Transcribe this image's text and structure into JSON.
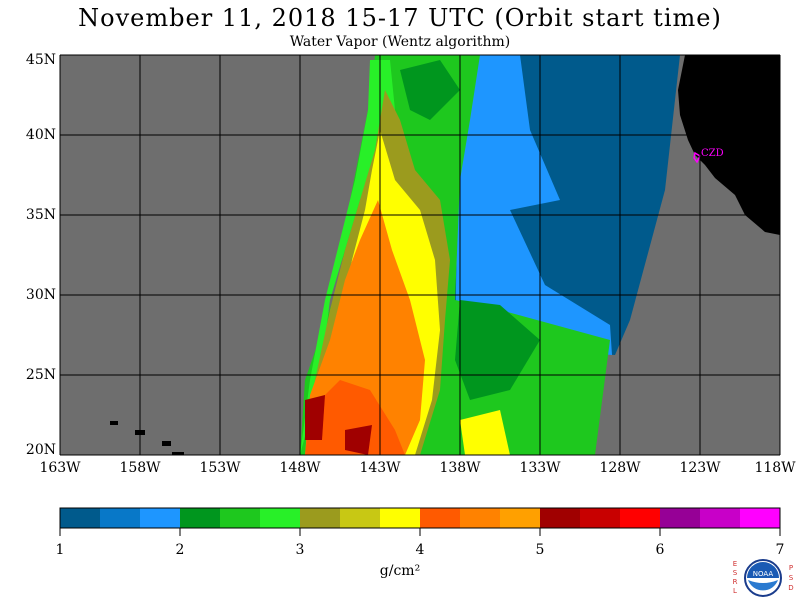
{
  "title": "November 11, 2018  15-17 UTC  (Orbit start time)",
  "subtitle": "Water Vapor (Wentz algorithm)",
  "lat_labels": [
    "45N",
    "40N",
    "35N",
    "30N",
    "25N",
    "20N"
  ],
  "lon_labels": [
    "163W",
    "158W",
    "153W",
    "148W",
    "143W",
    "138W",
    "133W",
    "128W",
    "123W",
    "118W"
  ],
  "station_label": "CZD",
  "colorbar": {
    "ticks": [
      "1",
      "2",
      "3",
      "4",
      "5",
      "6",
      "7"
    ],
    "units": "g/cm²",
    "colors": [
      "#005a8c",
      "#0878c8",
      "#1e96ff",
      "#00961e",
      "#1ec81e",
      "#28f028",
      "#9b9b1e",
      "#c8c814",
      "#ffff00",
      "#ff5a00",
      "#ff8200",
      "#ffa000",
      "#a00000",
      "#c80000",
      "#ff0000",
      "#960096",
      "#c800c8",
      "#ff00ff"
    ]
  },
  "logo": {
    "text": "NOAA",
    "left_letters": [
      "E",
      "S",
      "R",
      "L"
    ],
    "right_letters": [
      "P",
      "S",
      "D"
    ]
  },
  "colors": {
    "no_data": "#6e6e6e",
    "land": "#000000",
    "station": "#ff00ff"
  }
}
